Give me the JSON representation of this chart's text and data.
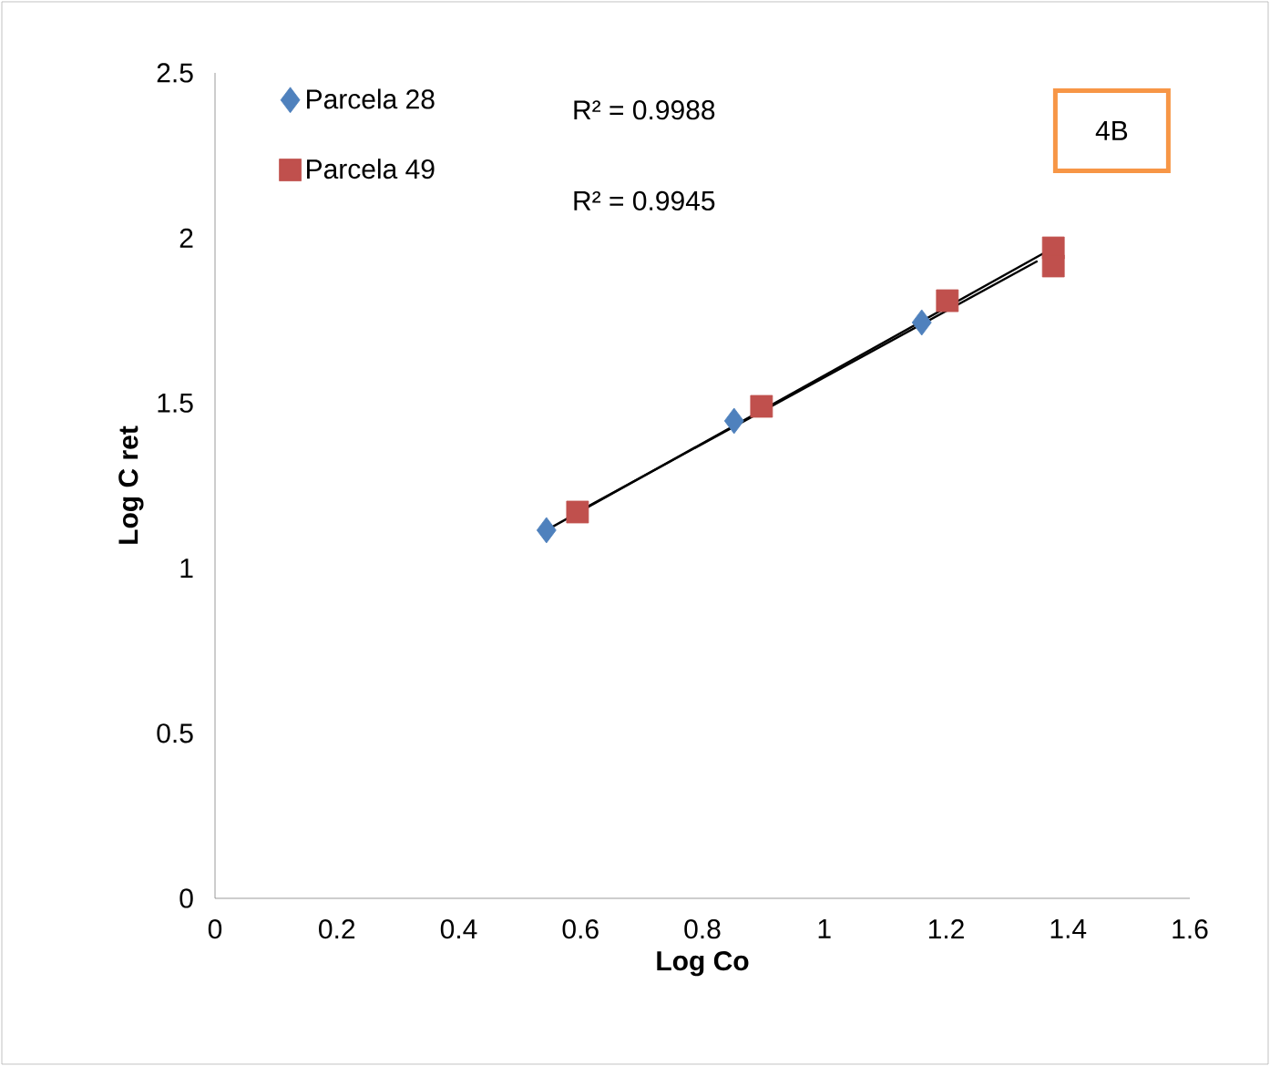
{
  "chart_data": {
    "type": "scatter",
    "xlabel": "Log Co",
    "ylabel": "Log C ret",
    "xlim": [
      0,
      1.6
    ],
    "ylim": [
      0,
      2.5
    ],
    "xticks": [
      0,
      0.2,
      0.4,
      0.6,
      0.8,
      1,
      1.2,
      1.4,
      1.6
    ],
    "yticks": [
      0,
      0.5,
      1,
      1.5,
      2,
      2.5
    ],
    "grid": false,
    "legend": "top left",
    "annotations": [
      "R² = 0.9988",
      "R² = 0.9945",
      "4B"
    ],
    "series": [
      {
        "name": "Parcela 28",
        "color": "#4f81bd",
        "marker": "diamond",
        "x": [
          0.544,
          0.852,
          1.16
        ],
        "values": [
          1.115,
          1.446,
          1.744
        ]
      },
      {
        "name": "Parcela 49",
        "color": "#c0504d",
        "marker": "square",
        "x": [
          0.595,
          0.897,
          1.202,
          1.376,
          1.376
        ],
        "values": [
          1.17,
          1.49,
          1.81,
          1.97,
          1.915
        ]
      },
      {
        "type": "line",
        "color": "#000000",
        "marker": "none",
        "x": [
          0.544,
          1.376
        ],
        "values": [
          1.115,
          1.97
        ]
      },
      {
        "type": "line",
        "color": "#000000",
        "marker": "none",
        "x": [
          0.595,
          1.35
        ],
        "values": [
          1.17,
          1.93
        ]
      }
    ]
  }
}
